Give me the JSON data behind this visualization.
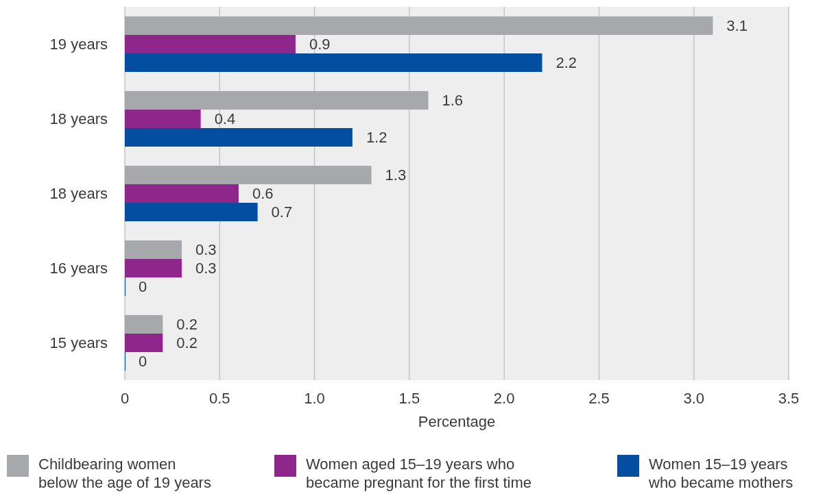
{
  "chart_data": {
    "type": "bar",
    "orientation": "horizontal",
    "xlabel": "Percentage",
    "categories": [
      "19 years",
      "18 years",
      "18 years",
      "16 years",
      "15 years"
    ],
    "series": [
      {
        "name": "Childbearing women below the age of 19 years",
        "color": "#a7a8ac",
        "values": [
          3.1,
          1.6,
          1.3,
          0.3,
          0.2
        ]
      },
      {
        "name": "Women aged 15–19 years who became pregnant for the first time",
        "color": "#8e268b",
        "values": [
          0.9,
          0.4,
          0.6,
          0.3,
          0.2
        ]
      },
      {
        "name": "Women 15–19 years who became mothers",
        "color": "#044ea1",
        "values": [
          2.2,
          1.2,
          0.7,
          0,
          0
        ]
      }
    ],
    "xlim": [
      0,
      3.5
    ],
    "xticks": [
      0,
      0.5,
      {
        "value": 1,
        "label": "1.0"
      },
      1.5,
      {
        "value": 2,
        "label": "2.0"
      },
      2.5,
      {
        "value": 3,
        "label": "3.0"
      },
      3.5
    ],
    "grid": "x",
    "legend": "bottom",
    "data_labels": true
  }
}
